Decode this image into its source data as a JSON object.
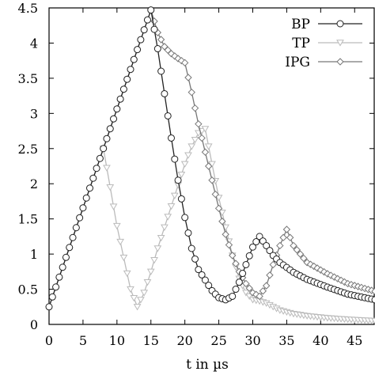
{
  "chart_data": {
    "type": "line",
    "xlabel": "t in µs",
    "ylabel": "",
    "xlim": [
      0,
      48
    ],
    "ylim": [
      0,
      4.5
    ],
    "x_ticks": [
      "0",
      "5",
      "10",
      "15",
      "20",
      "25",
      "30",
      "35",
      "40",
      "45"
    ],
    "y_ticks": [
      "0",
      "0.5",
      "1",
      "1.5",
      "2",
      "2.5",
      "3",
      "3.5",
      "4",
      "4.5"
    ],
    "grid": false,
    "legend_position": "top-right",
    "series": [
      {
        "name": "BP",
        "color": "#222222",
        "marker": "circle",
        "points": [
          [
            0,
            0.25
          ],
          [
            15,
            4.47
          ],
          [
            16,
            3.92
          ],
          [
            17,
            3.28
          ],
          [
            18,
            2.65
          ],
          [
            19,
            2.05
          ],
          [
            20,
            1.52
          ],
          [
            21,
            1.08
          ],
          [
            22,
            0.78
          ],
          [
            24,
            0.48
          ],
          [
            25,
            0.38
          ],
          [
            26,
            0.35
          ],
          [
            27,
            0.4
          ],
          [
            28,
            0.6
          ],
          [
            29,
            0.85
          ],
          [
            30,
            1.1
          ],
          [
            31,
            1.25
          ],
          [
            32,
            1.12
          ],
          [
            33,
            0.98
          ],
          [
            34,
            0.88
          ],
          [
            36,
            0.74
          ],
          [
            38,
            0.64
          ],
          [
            41,
            0.53
          ],
          [
            44,
            0.43
          ],
          [
            48,
            0.35
          ]
        ]
      },
      {
        "name": "TP",
        "color": "#bbbbbb",
        "marker": "triangle-down",
        "points": [
          [
            8,
            2.5
          ],
          [
            9,
            1.95
          ],
          [
            10,
            1.4
          ],
          [
            11,
            0.95
          ],
          [
            12,
            0.5
          ],
          [
            13,
            0.25
          ],
          [
            14,
            0.45
          ],
          [
            15,
            0.75
          ],
          [
            16,
            1.08
          ],
          [
            17,
            1.38
          ],
          [
            18,
            1.68
          ],
          [
            19,
            1.98
          ],
          [
            20,
            2.28
          ],
          [
            21,
            2.53
          ],
          [
            22,
            2.72
          ],
          [
            23,
            2.78
          ],
          [
            24,
            2.28
          ],
          [
            25,
            1.8
          ],
          [
            26,
            1.38
          ],
          [
            27,
            0.98
          ],
          [
            28,
            0.65
          ],
          [
            29,
            0.45
          ],
          [
            30,
            0.35
          ],
          [
            31,
            0.33
          ],
          [
            32,
            0.3
          ],
          [
            33,
            0.25
          ],
          [
            34,
            0.2
          ],
          [
            36,
            0.15
          ],
          [
            38,
            0.12
          ],
          [
            41,
            0.09
          ],
          [
            44,
            0.07
          ],
          [
            48,
            0.05
          ]
        ]
      },
      {
        "name": "IPG",
        "color": "#777777",
        "marker": "diamond",
        "points": [
          [
            0,
            0.25
          ],
          [
            15,
            4.47
          ],
          [
            16,
            4.15
          ],
          [
            17,
            3.95
          ],
          [
            18,
            3.85
          ],
          [
            19,
            3.78
          ],
          [
            20,
            3.72
          ],
          [
            21,
            3.3
          ],
          [
            22,
            2.85
          ],
          [
            23,
            2.45
          ],
          [
            24,
            2.05
          ],
          [
            25,
            1.65
          ],
          [
            26,
            1.28
          ],
          [
            27,
            0.98
          ],
          [
            28,
            0.75
          ],
          [
            29,
            0.58
          ],
          [
            30,
            0.45
          ],
          [
            31,
            0.4
          ],
          [
            32,
            0.55
          ],
          [
            33,
            0.85
          ],
          [
            34,
            1.12
          ],
          [
            35,
            1.35
          ],
          [
            36,
            1.12
          ],
          [
            38,
            0.88
          ],
          [
            41,
            0.72
          ],
          [
            44,
            0.58
          ],
          [
            48,
            0.47
          ]
        ]
      }
    ]
  }
}
